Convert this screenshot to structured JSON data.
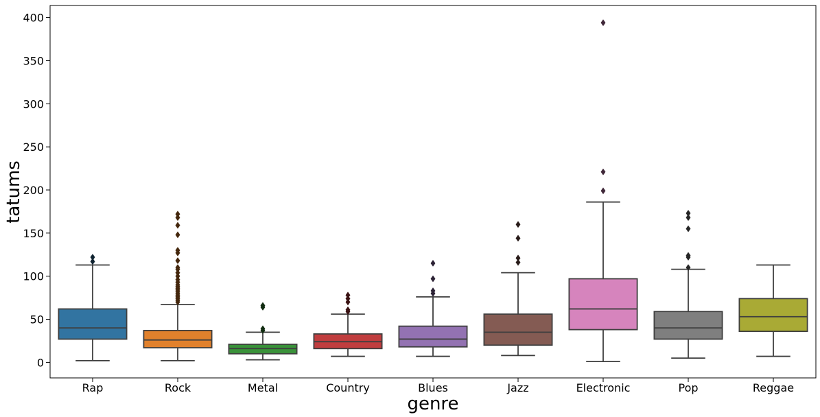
{
  "chart_data": {
    "type": "box",
    "xlabel": "genre",
    "ylabel": "tatums",
    "ylim": [
      -18,
      414
    ],
    "yticks": [
      0,
      50,
      100,
      150,
      200,
      250,
      300,
      350,
      400
    ],
    "categories": [
      "Rap",
      "Rock",
      "Metal",
      "Country",
      "Blues",
      "Jazz",
      "Electronic",
      "Pop",
      "Reggae"
    ],
    "colors": [
      "#3274a1",
      "#e1812c",
      "#3a923a",
      "#c03d3e",
      "#9372b2",
      "#845b53",
      "#d684bd",
      "#7f7f7f",
      "#a9aa35"
    ],
    "grid": false,
    "legend": "none",
    "boxes": [
      {
        "category": "Rap",
        "q1": 27,
        "median": 40,
        "q3": 62,
        "whisker_low": 2,
        "whisker_high": 113,
        "outliers": [
          117,
          122
        ]
      },
      {
        "category": "Rock",
        "q1": 17,
        "median": 26,
        "q3": 37,
        "whisker_low": 2,
        "whisker_high": 67,
        "outliers": [
          70,
          72,
          74,
          76,
          78,
          80,
          82,
          84,
          86,
          88,
          90,
          93,
          96,
          100,
          104,
          108,
          110,
          118,
          127,
          130,
          148,
          159,
          168,
          172
        ]
      },
      {
        "category": "Metal",
        "q1": 10,
        "median": 16,
        "q3": 21,
        "whisker_low": 3,
        "whisker_high": 35,
        "outliers": [
          37,
          39,
          64,
          66
        ]
      },
      {
        "category": "Country",
        "q1": 16,
        "median": 24,
        "q3": 33,
        "whisker_low": 7,
        "whisker_high": 56,
        "outliers": [
          59,
          61,
          70,
          74,
          78
        ]
      },
      {
        "category": "Blues",
        "q1": 18,
        "median": 27,
        "q3": 42,
        "whisker_low": 7,
        "whisker_high": 76,
        "outliers": [
          80,
          83,
          97,
          115
        ]
      },
      {
        "category": "Jazz",
        "q1": 20,
        "median": 35,
        "q3": 56,
        "whisker_low": 8,
        "whisker_high": 104,
        "outliers": [
          116,
          121,
          144,
          160
        ]
      },
      {
        "category": "Electronic",
        "q1": 38,
        "median": 62,
        "q3": 97,
        "whisker_low": 1,
        "whisker_high": 186,
        "outliers": [
          199,
          221,
          394
        ]
      },
      {
        "category": "Pop",
        "q1": 27,
        "median": 40,
        "q3": 59,
        "whisker_low": 5,
        "whisker_high": 108,
        "outliers": [
          110,
          122,
          124,
          155,
          168,
          173
        ]
      },
      {
        "category": "Reggae",
        "q1": 36,
        "median": 53,
        "q3": 74,
        "whisker_low": 7,
        "whisker_high": 113,
        "outliers": []
      }
    ]
  }
}
